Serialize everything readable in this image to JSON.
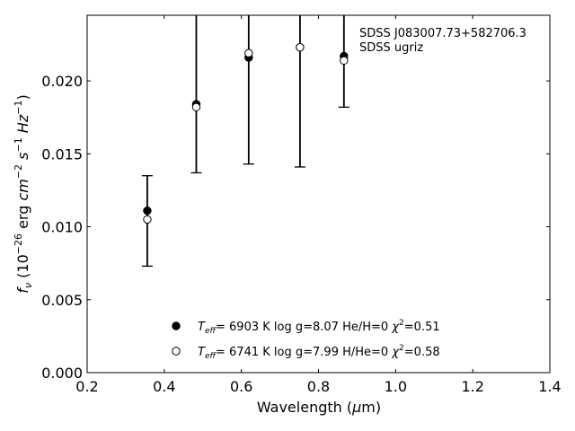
{
  "chart_data": {
    "type": "scatter",
    "xlabel": "Wavelength (μm)",
    "ylabel": "fν (10⁻²⁶ erg cm⁻² s⁻¹ Hz⁻¹)",
    "xlim": [
      0.2,
      1.4
    ],
    "ylim": [
      0.0,
      0.0245
    ],
    "xticks": [
      "0.2",
      "0.4",
      "0.6",
      "0.8",
      "1.0",
      "1.2",
      "1.4"
    ],
    "yticks": [
      "0.000",
      "0.005",
      "0.010",
      "0.015",
      "0.020"
    ],
    "annotations": [
      "SDSS J083007.73+582706.3",
      "SDSS ugriz"
    ],
    "legend_placement": "lower-center",
    "observed": {
      "x": [
        0.356,
        0.483,
        0.619,
        0.752,
        0.866
      ],
      "y": [
        0.0111,
        0.0184,
        0.0216,
        0.0223,
        0.0217
      ],
      "yerr_low": [
        0.0073,
        0.0137,
        0.0143,
        0.0141,
        0.0182
      ],
      "yerr_high": [
        0.0135,
        0.026,
        0.026,
        0.026,
        0.026
      ]
    },
    "series": [
      {
        "marker": "filled",
        "legend": [
          "6903 K",
          "log g=8.07",
          "He/H=0",
          "=0.51"
        ],
        "x": [
          0.356,
          0.483,
          0.619,
          0.752,
          0.866
        ],
        "y": [
          0.0111,
          0.0184,
          0.0216,
          0.0223,
          0.0217
        ]
      },
      {
        "marker": "open",
        "legend": [
          "6741 K",
          "log g=7.99",
          "H/He=0",
          "=0.58"
        ],
        "x": [
          0.356,
          0.483,
          0.619,
          0.752,
          0.866
        ],
        "y": [
          0.0105,
          0.0182,
          0.0219,
          0.0223,
          0.0214
        ]
      }
    ]
  }
}
